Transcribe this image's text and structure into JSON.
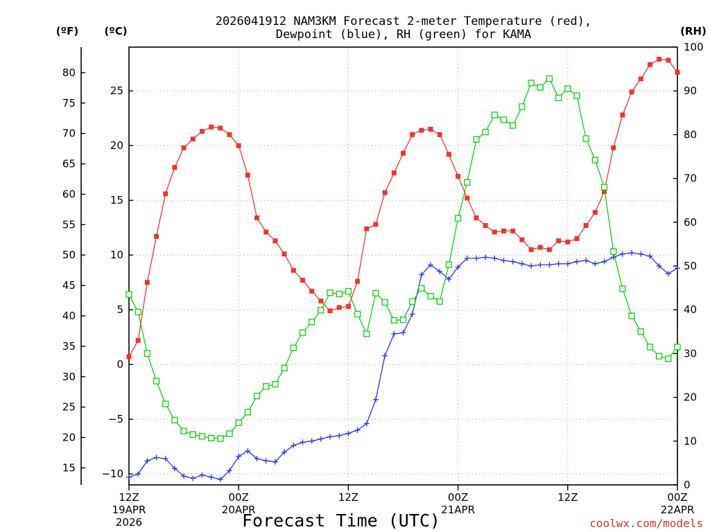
{
  "title_line1": "2026041912 NAM3KM Forecast 2-meter Temperature (red),",
  "title_line2": "Dewpoint (blue), RH (green) for KAMA",
  "unit_f": "(ºF)",
  "unit_c": "(ºC)",
  "unit_rh": "(RH)",
  "xlabel": "Forecast Time (UTC)",
  "credit": "coolwx.com/models",
  "colors": {
    "temperature": "#ee3333",
    "dewpoint": "#2233ee",
    "rh": "#11cc11",
    "grid": "#999999"
  },
  "chart_data": {
    "type": "line",
    "title": "2026041912 NAM3KM Forecast 2-meter Temperature (red), Dewpoint (blue), RH (green) for KAMA",
    "xlabel": "Forecast Time (UTC)",
    "x_unit": "forecast hour",
    "xlim": [
      0,
      60
    ],
    "x_ticks": [
      {
        "x": 0,
        "label": "12Z",
        "date": "19APR",
        "year": "2026"
      },
      {
        "x": 12,
        "label": "00Z",
        "date": "20APR",
        "year": ""
      },
      {
        "x": 24,
        "label": "12Z",
        "date": "",
        "year": ""
      },
      {
        "x": 36,
        "label": "00Z",
        "date": "21APR",
        "year": ""
      },
      {
        "x": 48,
        "label": "12Z",
        "date": "",
        "year": ""
      },
      {
        "x": 60,
        "label": "00Z",
        "date": "22APR",
        "year": ""
      }
    ],
    "y_left_c": {
      "label": "(ºC)",
      "lim": [
        -11,
        29
      ],
      "ticks": [
        -10,
        -5,
        0,
        5,
        10,
        15,
        20,
        25
      ],
      "tick_labels": [
        "−10",
        "−5",
        "0",
        "5",
        "10",
        "15",
        "20",
        "25"
      ]
    },
    "y_left_f": {
      "label": "(ºF)",
      "ticks": [
        15,
        20,
        25,
        30,
        35,
        40,
        45,
        50,
        55,
        60,
        65,
        70,
        75,
        80
      ]
    },
    "y_right_rh": {
      "label": "(RH)",
      "lim": [
        0,
        100
      ],
      "ticks": [
        0,
        10,
        20,
        30,
        40,
        50,
        60,
        70,
        80,
        90,
        100
      ]
    },
    "series": [
      {
        "name": "Temperature",
        "units": "C",
        "axis": "left",
        "marker": "filled-square",
        "values": [
          0.7,
          2.2,
          7.5,
          11.7,
          15.6,
          18.0,
          19.8,
          20.6,
          21.3,
          21.7,
          21.6,
          21.0,
          20.0,
          17.3,
          13.4,
          12.1,
          11.3,
          10.1,
          8.6,
          7.7,
          6.7,
          5.8,
          4.9,
          5.2,
          5.3,
          7.6,
          12.4,
          12.8,
          15.7,
          17.5,
          19.3,
          21.0,
          21.4,
          21.5,
          21.0,
          19.2,
          17.2,
          15.2,
          13.4,
          12.7,
          12.1,
          12.2,
          12.2,
          11.4,
          10.5,
          10.7,
          10.5,
          11.3,
          11.2,
          11.5,
          12.7,
          13.9,
          15.8,
          19.8,
          22.8,
          24.9,
          26.1,
          27.4,
          27.9,
          27.8,
          26.7
        ]
      },
      {
        "name": "Dewpoint",
        "units": "C",
        "axis": "left",
        "marker": "plus",
        "values": [
          -10.3,
          -10.0,
          -8.8,
          -8.5,
          -8.6,
          -9.5,
          -10.2,
          -10.4,
          -10.1,
          -10.3,
          -10.5,
          -9.7,
          -8.4,
          -7.9,
          -8.6,
          -8.8,
          -8.9,
          -8.0,
          -7.4,
          -7.1,
          -7.0,
          -6.8,
          -6.6,
          -6.5,
          -6.3,
          -6.0,
          -5.4,
          -3.2,
          0.8,
          2.8,
          2.9,
          4.6,
          8.2,
          9.1,
          8.5,
          7.8,
          8.9,
          9.7,
          9.7,
          9.8,
          9.7,
          9.5,
          9.4,
          9.2,
          9.0,
          9.1,
          9.1,
          9.2,
          9.2,
          9.4,
          9.5,
          9.2,
          9.4,
          9.8,
          10.1,
          10.2,
          10.1,
          9.9,
          9.0,
          8.3,
          8.8
        ]
      },
      {
        "name": "RH",
        "units": "%",
        "axis": "right",
        "marker": "open-square",
        "values": [
          43.5,
          39.5,
          30.0,
          23.7,
          18.5,
          14.8,
          12.3,
          11.5,
          11.1,
          10.7,
          10.6,
          11.7,
          14.2,
          16.6,
          20.3,
          22.5,
          23.0,
          26.7,
          31.3,
          34.8,
          37.2,
          39.9,
          43.9,
          43.6,
          44.2,
          39.0,
          34.5,
          43.8,
          41.7,
          37.6,
          37.7,
          41.9,
          44.9,
          43.1,
          41.9,
          50.3,
          60.9,
          69.1,
          78.9,
          80.6,
          84.5,
          83.4,
          82.1,
          86.4,
          91.8,
          90.8,
          92.8,
          88.4,
          90.5,
          88.9,
          79.1,
          74.2,
          68.0,
          53.3,
          44.8,
          38.6,
          35.0,
          31.5,
          29.4,
          28.8,
          31.5
        ]
      }
    ]
  }
}
